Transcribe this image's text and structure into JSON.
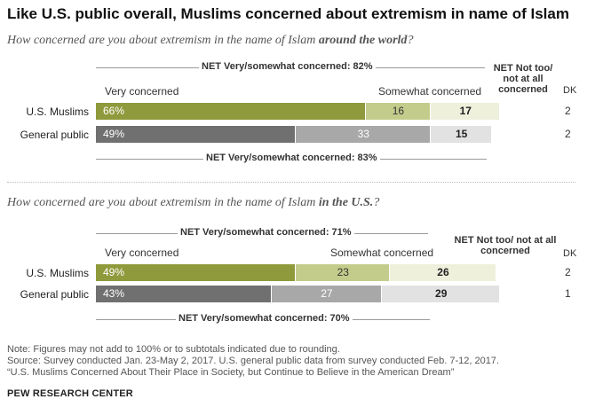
{
  "title": "Like U.S. public overall, Muslims concerned about extremism in name of Islam",
  "charts": [
    {
      "question_prefix": "How concerned are you about extremism in the name of Islam ",
      "question_bold": "around the world",
      "question_suffix": "?",
      "net_top_label": "NET Very/somewhat concerned: 82%",
      "net_bottom_label": "NET Very/somewhat concerned: 83%",
      "col_very": "Very concerned",
      "col_somewhat": "Somewhat concerned",
      "col_net_not": "NET Not too/ not at all concerned",
      "col_dk": "DK"
    },
    {
      "question_prefix": "How concerned are you about extremism in the name of Islam ",
      "question_bold": "in the U.S.",
      "question_suffix": "?",
      "net_top_label": "NET Very/somewhat concerned: 71%",
      "net_bottom_label": "NET Very/somewhat concerned: 70%",
      "col_very": "Very concerned",
      "col_somewhat": "Somewhat concerned",
      "col_net_not": "NET Not too/ not at all concerned",
      "col_dk": "DK"
    }
  ],
  "chart_data": [
    {
      "type": "bar",
      "stacked": true,
      "orientation": "horizontal",
      "categories": [
        "U.S. Muslims",
        "General public"
      ],
      "series": [
        {
          "name": "Very concerned",
          "values": [
            66,
            49
          ],
          "labels": [
            "66%",
            "49%"
          ]
        },
        {
          "name": "Somewhat concerned",
          "values": [
            16,
            33
          ],
          "labels": [
            "16",
            "33"
          ]
        },
        {
          "name": "NET Not too/ not at all concerned",
          "values": [
            17,
            15
          ],
          "labels": [
            "17",
            "15"
          ]
        },
        {
          "name": "DK",
          "values": [
            2,
            2
          ],
          "labels": [
            "2",
            "2"
          ]
        }
      ]
    },
    {
      "type": "bar",
      "stacked": true,
      "orientation": "horizontal",
      "categories": [
        "U.S. Muslims",
        "General public"
      ],
      "series": [
        {
          "name": "Very concerned",
          "values": [
            49,
            43
          ],
          "labels": [
            "49%",
            "43%"
          ]
        },
        {
          "name": "Somewhat concerned",
          "values": [
            23,
            27
          ],
          "labels": [
            "23",
            "27"
          ]
        },
        {
          "name": "NET Not too/ not at all concerned",
          "values": [
            26,
            29
          ],
          "labels": [
            "26",
            "29"
          ]
        },
        {
          "name": "DK",
          "values": [
            2,
            1
          ],
          "labels": [
            "2",
            "1"
          ]
        }
      ]
    }
  ],
  "colors": {
    "muslims": [
      "#8f9a3c",
      "#c4cc8c",
      "#eef0dc"
    ],
    "public": [
      "#707070",
      "#a8a8a8",
      "#e2e2e2"
    ]
  },
  "notes": [
    "Note: Figures may not add to 100% or to subtotals indicated due to rounding.",
    "Source: Survey conducted Jan. 23-May 2, 2017. U.S. general public data from survey conducted Feb. 7-12, 2017.",
    "“U.S. Muslims Concerned About Their Place in Society, but Continue to Believe in the American Dream”"
  ],
  "source_org": "PEW RESEARCH CENTER"
}
